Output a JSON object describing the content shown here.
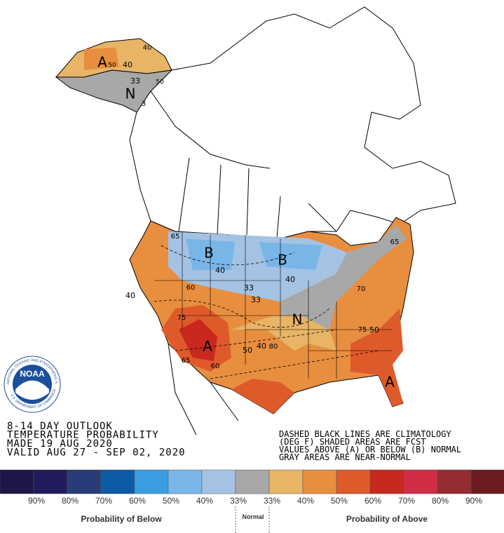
{
  "logo": {
    "name": "NOAA",
    "ring_top": "NATIONAL OCEANIC AND ATMOSPHERIC ADMINISTRATION",
    "ring_bottom": "U.S. DEPARTMENT OF COMMERCE"
  },
  "outlook": {
    "lines": [
      "8-14 DAY OUTLOOK",
      "TEMPERATURE PROBABILITY",
      "MADE  19 AUG 2020",
      "VALID  AUG 27 - SEP 02, 2020"
    ]
  },
  "notes": {
    "lines": [
      "DASHED BLACK LINES ARE CLIMATOLOGY",
      "(DEG F) SHADED AREAS ARE FCST",
      "VALUES ABOVE (A) OR BELOW (B) NORMAL",
      "GRAY AREAS ARE NEAR-NORMAL"
    ]
  },
  "map_labels": [
    "A",
    "N",
    "40",
    "50",
    "40",
    "33",
    "50",
    "3",
    "B",
    "B",
    "N",
    "A",
    "A",
    "40",
    "33",
    "33",
    "40",
    "40",
    "65",
    "60",
    "75",
    "65",
    "60",
    "50",
    "40",
    "80",
    "75",
    "50",
    "70",
    "65"
  ],
  "legend": {
    "ticks": [
      "90%",
      "80%",
      "70%",
      "60%",
      "50%",
      "40%",
      "33%",
      "33%",
      "40%",
      "50%",
      "60%",
      "70%",
      "80%",
      "90%"
    ],
    "below": "Probability of Below",
    "normal": "Normal",
    "above": "Probability of Above"
  }
}
